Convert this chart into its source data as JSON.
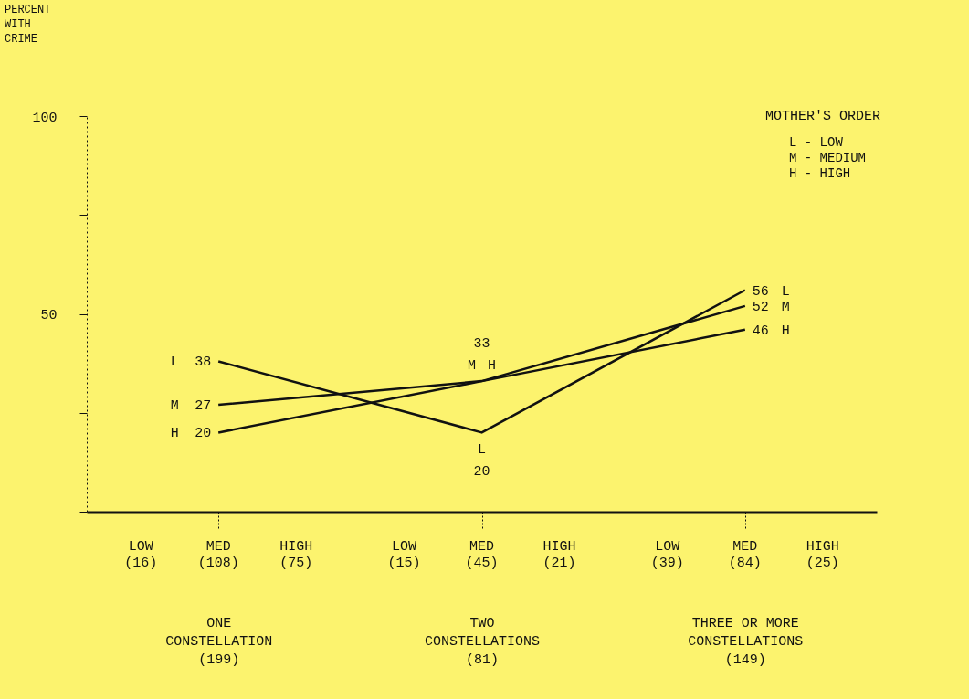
{
  "chart_data": {
    "type": "line",
    "categories": [
      "ONE\nCONSTELLATION\n\n(199)",
      "TWO\nCONSTELLATIONS\n\n(81)",
      "THREE OR MORE\nCONSTELLATIONS\n\n(149)"
    ],
    "series": [
      {
        "name": "L",
        "color": "#111111",
        "values": [
          38,
          20,
          56
        ],
        "value_labels": [
          "38",
          "20",
          "56"
        ]
      },
      {
        "name": "M",
        "color": "#111111",
        "values": [
          27,
          33,
          52
        ],
        "value_labels": [
          "27",
          "33",
          "52"
        ]
      },
      {
        "name": "H",
        "color": "#111111",
        "values": [
          20,
          33,
          46
        ],
        "value_labels": [
          "20",
          null,
          "46"
        ]
      }
    ],
    "ylim": [
      0,
      100
    ],
    "yticks": [
      {
        "value": 0,
        "label": null
      },
      {
        "value": 25,
        "label": null
      },
      50,
      {
        "value": 75,
        "label": null
      },
      100
    ],
    "annotations": [
      "PERCENT\nWITH\nCRIME",
      "LOW\n(16)",
      "MED\n(108)",
      "HIGH\n(75)",
      "LOW\n(15)",
      "MED\n(45)",
      "HIGH\n(21)",
      "LOW\n(39)",
      "MED\n(84)",
      "HIGH\n(25)",
      "MOTHER'S ORDER",
      "L - LOW",
      "M - MEDIUM",
      "H - HIGH"
    ],
    "grid": false,
    "marker": "none",
    "line_style": "solid"
  }
}
